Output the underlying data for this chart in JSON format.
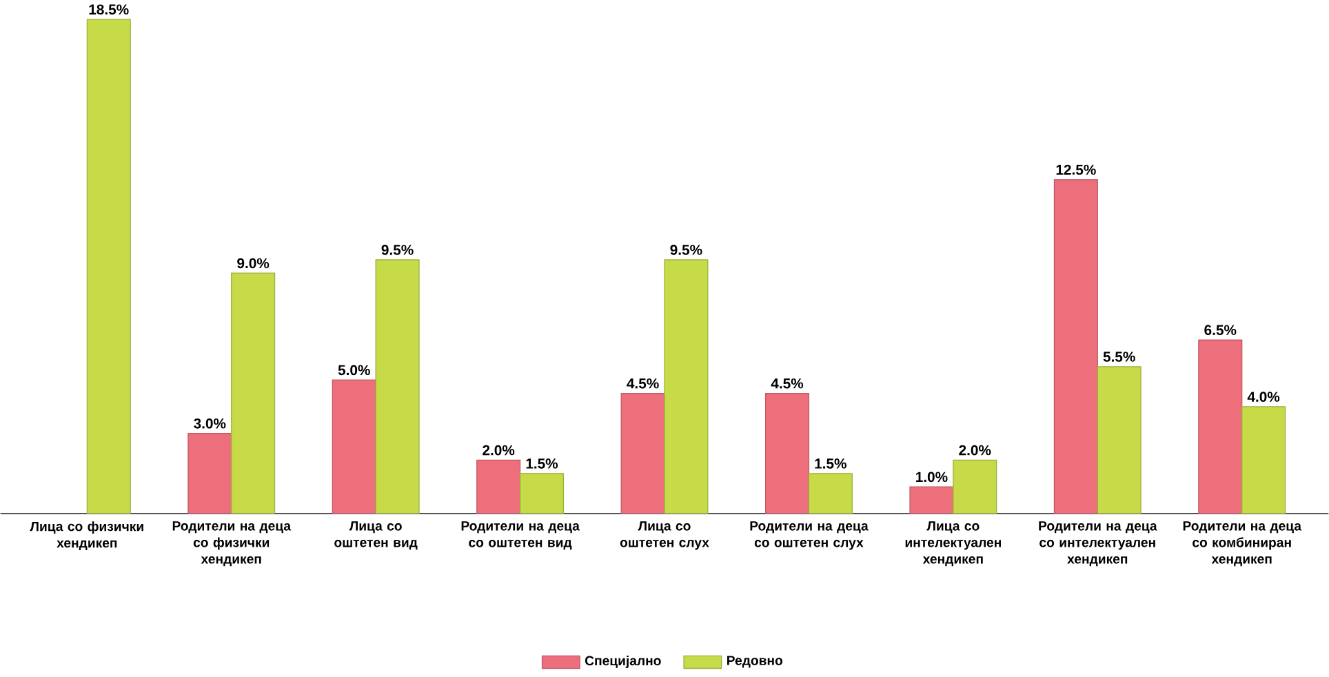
{
  "chart_data": {
    "type": "bar",
    "categories": [
      "Лица со физички хендикеп",
      "Родители на деца со физички хендикеп",
      "Лица со оштетен вид",
      "Родители на деца со оштетен вид",
      "Лица со оштетен слух",
      "Родители на деца со оштетен слух",
      "Лица со интелектуален хендикеп",
      "Родители на деца со интелектуален хендикеп",
      "Родители на деца со комбиниран хендикеп"
    ],
    "series": [
      {
        "name": "Специјално",
        "color": "#ee6f7c",
        "values": [
          null,
          3.0,
          5.0,
          2.0,
          4.5,
          4.5,
          1.0,
          12.5,
          6.5
        ],
        "value_labels": [
          null,
          "3.0%",
          "5.0%",
          "2.0%",
          "4.5%",
          "4.5%",
          "1.0%",
          "12.5%",
          "6.5%"
        ]
      },
      {
        "name": "Редовно",
        "color": "#c6db47",
        "values": [
          18.5,
          9.0,
          9.5,
          1.5,
          9.5,
          1.5,
          2.0,
          5.5,
          4.0
        ],
        "value_labels": [
          "18.5%",
          "9.0%",
          "9.5%",
          "1.5%",
          "9.5%",
          "1.5%",
          "2.0%",
          "5.5%",
          "4.0%"
        ]
      }
    ],
    "legend": "bottom"
  }
}
